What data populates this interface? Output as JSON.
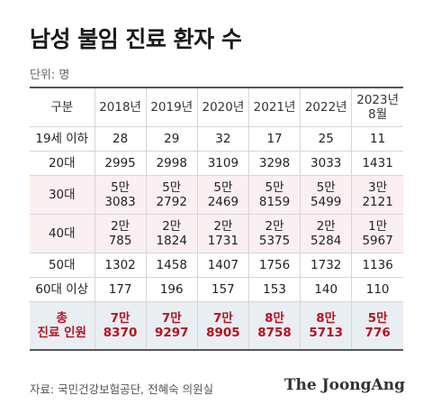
{
  "title": "남성 불임 진료 환자 수",
  "unit": "단위: 명",
  "chart_data": {
    "type": "table",
    "title": "남성 불임 진료 환자 수",
    "unit": "단위: 명",
    "header": {
      "row_label": "구분",
      "columns": [
        [
          "2018년"
        ],
        [
          "2019년"
        ],
        [
          "2020년"
        ],
        [
          "2021년"
        ],
        [
          "2022년"
        ],
        [
          "2023년",
          "8월"
        ]
      ]
    },
    "rows": [
      {
        "label": "19세 이하",
        "cells": [
          [
            "28"
          ],
          [
            "29"
          ],
          [
            "32"
          ],
          [
            "17"
          ],
          [
            "25"
          ],
          [
            "11"
          ]
        ]
      },
      {
        "label": "20대",
        "cells": [
          [
            "2995"
          ],
          [
            "2998"
          ],
          [
            "3109"
          ],
          [
            "3298"
          ],
          [
            "3033"
          ],
          [
            "1431"
          ]
        ]
      },
      {
        "label": "30대",
        "cells": [
          [
            "5만",
            "3083"
          ],
          [
            "5만",
            "2792"
          ],
          [
            "5만",
            "2469"
          ],
          [
            "5만",
            "8159"
          ],
          [
            "5만",
            "5499"
          ],
          [
            "3만",
            "2121"
          ]
        ]
      },
      {
        "label": "40대",
        "cells": [
          [
            "2만",
            "785"
          ],
          [
            "2만",
            "1824"
          ],
          [
            "2만",
            "1731"
          ],
          [
            "2만",
            "5375"
          ],
          [
            "2만",
            "5284"
          ],
          [
            "1만",
            "5967"
          ]
        ]
      },
      {
        "label": "50대",
        "cells": [
          [
            "1302"
          ],
          [
            "1458"
          ],
          [
            "1407"
          ],
          [
            "1756"
          ],
          [
            "1732"
          ],
          [
            "1136"
          ]
        ]
      },
      {
        "label": "60대 이상",
        "cells": [
          [
            "177"
          ],
          [
            "196"
          ],
          [
            "157"
          ],
          [
            "153"
          ],
          [
            "140"
          ],
          [
            "110"
          ]
        ]
      }
    ],
    "total": {
      "label": [
        "총",
        "진료 인원"
      ],
      "cells": [
        [
          "7만",
          "8370"
        ],
        [
          "7만",
          "9297"
        ],
        [
          "7만",
          "8905"
        ],
        [
          "8만",
          "8758"
        ],
        [
          "8만",
          "5713"
        ],
        [
          "5만",
          "776"
        ]
      ]
    },
    "values": {
      "19세 이하": [
        28,
        29,
        32,
        17,
        25,
        11
      ],
      "20대": [
        2995,
        2998,
        3109,
        3298,
        3033,
        1431
      ],
      "30대": [
        53083,
        52792,
        52469,
        58159,
        55499,
        32121
      ],
      "40대": [
        20785,
        21824,
        21731,
        25375,
        25284,
        15967
      ],
      "50대": [
        1302,
        1458,
        1407,
        1756,
        1732,
        1136
      ],
      "60대 이상": [
        177,
        196,
        157,
        153,
        140,
        110
      ],
      "총 진료 인원": [
        78370,
        79297,
        78905,
        88758,
        85713,
        50776
      ]
    }
  },
  "colors": {
    "highlight_row": "#fbeff1",
    "total_row": "#e9eef3",
    "total_text": "#b4141e"
  },
  "footer": {
    "source": "자료: 국민건강보험공단, 전혜숙 의원실",
    "brand": "The JoongAng"
  }
}
